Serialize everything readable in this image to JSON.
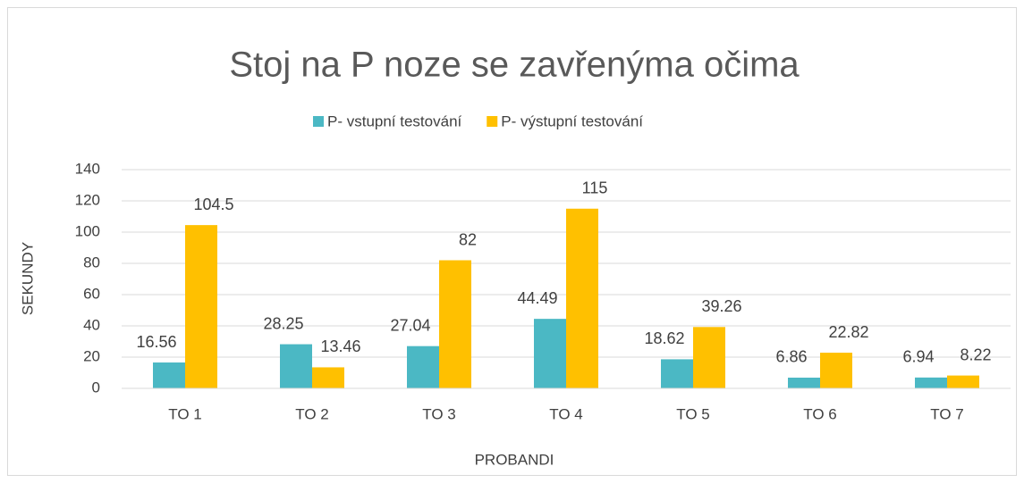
{
  "chart_data": {
    "type": "bar",
    "title": "Stoj na P noze se zavřenýma očima",
    "x_label": "PROBANDI",
    "y_label": "SEKUNDY",
    "categories": [
      "TO 1",
      "TO 2",
      "TO 3",
      "TO 4",
      "TO 5",
      "TO 6",
      "TO 7"
    ],
    "series": [
      {
        "name": "P- vstupní testování",
        "color": "#4bb8c4",
        "values": [
          16.56,
          28.25,
          27.04,
          44.49,
          18.62,
          6.86,
          6.94
        ]
      },
      {
        "name": "P- výstupní testování",
        "color": "#ffc000",
        "values": [
          104.5,
          13.46,
          82,
          115,
          39.26,
          22.82,
          8.22
        ]
      }
    ],
    "ylim": [
      0,
      140
    ],
    "yticks": [
      0,
      20,
      40,
      60,
      80,
      100,
      120,
      140
    ],
    "grid": true,
    "legend": "top"
  }
}
